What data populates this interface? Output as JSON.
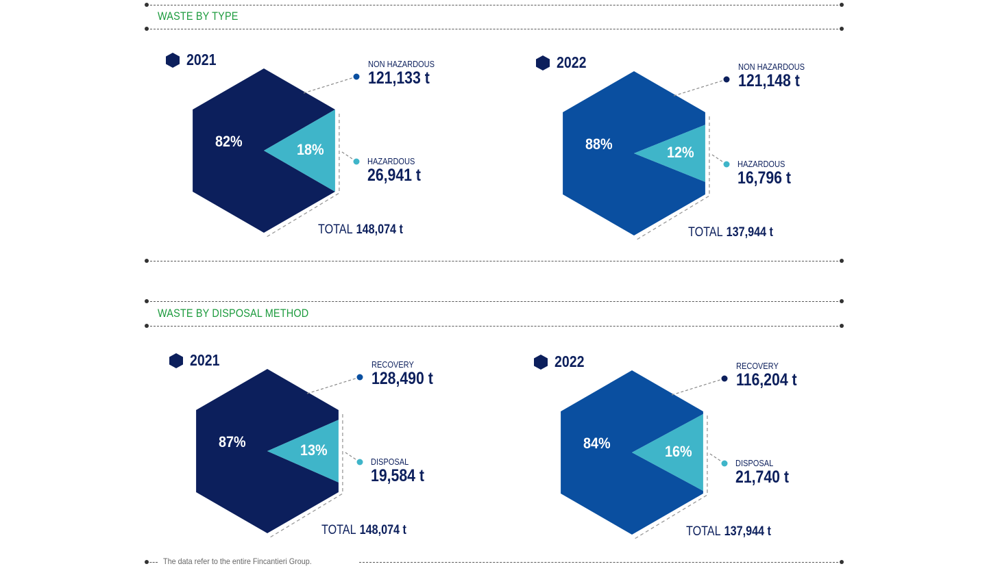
{
  "sections": [
    {
      "title": "WASTE BY TYPE"
    },
    {
      "title": "WASTE BY DISPOSAL METHOD"
    }
  ],
  "footnote": "The data refer to the entire Fincantieri Group.",
  "colors": {
    "dark_navy": "#0c1f5c",
    "royal_blue": "#0a4fa0",
    "cyan": "#3fb5c9",
    "title_green": "#1b9a3c"
  },
  "chart_data": [
    {
      "type": "pie",
      "year": "2021",
      "categories": [
        "NON HAZARDOUS",
        "HAZARDOUS"
      ],
      "values": [
        121133,
        26941
      ],
      "value_labels": [
        "121,133 t",
        "26,941 t"
      ],
      "percent_labels": [
        "82%",
        "18%"
      ],
      "total_label": "TOTAL",
      "total_value": "148,074 t",
      "colors": [
        "#0c1f5c",
        "#3fb5c9"
      ]
    },
    {
      "type": "pie",
      "year": "2022",
      "categories": [
        "NON HAZARDOUS",
        "HAZARDOUS"
      ],
      "values": [
        121148,
        16796
      ],
      "value_labels": [
        "121,148 t",
        "16,796 t"
      ],
      "percent_labels": [
        "88%",
        "12%"
      ],
      "total_label": "TOTAL",
      "total_value": "137,944 t",
      "colors": [
        "#0a4fa0",
        "#3fb5c9"
      ]
    },
    {
      "type": "pie",
      "year": "2021",
      "categories": [
        "RECOVERY",
        "DISPOSAL"
      ],
      "values": [
        128490,
        19584
      ],
      "value_labels": [
        "128,490 t",
        "19,584 t"
      ],
      "percent_labels": [
        "87%",
        "13%"
      ],
      "total_label": "TOTAL",
      "total_value": "148,074 t",
      "colors": [
        "#0c1f5c",
        "#3fb5c9"
      ]
    },
    {
      "type": "pie",
      "year": "2022",
      "categories": [
        "RECOVERY",
        "DISPOSAL"
      ],
      "values": [
        116204,
        21740
      ],
      "value_labels": [
        "116,204 t",
        "21,740 t"
      ],
      "percent_labels": [
        "84%",
        "16%"
      ],
      "total_label": "TOTAL",
      "total_value": "137,944 t",
      "colors": [
        "#0a4fa0",
        "#3fb5c9"
      ]
    }
  ]
}
